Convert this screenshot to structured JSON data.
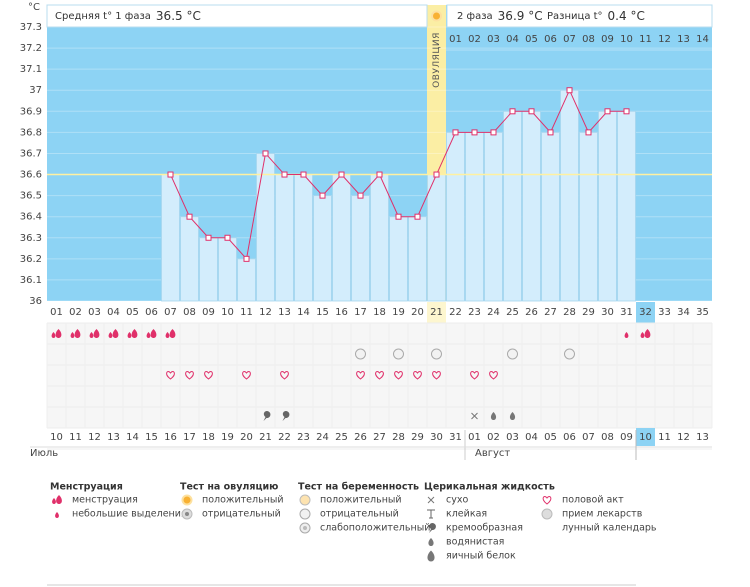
{
  "chart_data": {
    "type": "line",
    "y_label": "°C",
    "ylim": [
      36,
      37.3
    ],
    "yticks": [
      36,
      36.1,
      36.2,
      36.3,
      36.4,
      36.5,
      36.6,
      36.7,
      36.8,
      36.9,
      37,
      37.1,
      37.2,
      37.3
    ],
    "grid": true,
    "phase1_label": "Средняя t° 1 фаза",
    "phase1_avg": "36.5 °C",
    "phase2_label": "2 фаза",
    "phase2_avg": "36.9 °C",
    "difference_label": "Разница t°",
    "difference": "0.4 °C",
    "ovulation_label": "ОВУЛЯЦИЯ",
    "ovulation_day": 21,
    "coverline": 36.6,
    "today": 32,
    "color": "#e0306a",
    "categories": [
      "01",
      "02",
      "03",
      "04",
      "05",
      "06",
      "07",
      "08",
      "09",
      "10",
      "11",
      "12",
      "13",
      "14",
      "15",
      "16",
      "17",
      "18",
      "19",
      "20",
      "21",
      "22",
      "23",
      "24",
      "25",
      "26",
      "27",
      "28",
      "29",
      "30",
      "31",
      "32",
      "33",
      "34",
      "35"
    ],
    "values": [
      null,
      null,
      null,
      null,
      null,
      null,
      36.6,
      36.4,
      36.3,
      36.3,
      36.2,
      36.7,
      36.6,
      36.6,
      36.5,
      36.6,
      36.5,
      36.6,
      36.4,
      36.4,
      36.6,
      36.8,
      36.8,
      36.8,
      36.9,
      36.9,
      36.8,
      37.0,
      36.8,
      36.9,
      36.9,
      null,
      null,
      null,
      null
    ],
    "post_ovulation_days": [
      "01",
      "02",
      "03",
      "04",
      "05",
      "06",
      "07",
      "08",
      "09",
      "10",
      "11",
      "12",
      "13",
      "14"
    ],
    "dates": [
      "10",
      "11",
      "12",
      "13",
      "14",
      "15",
      "16",
      "17",
      "18",
      "19",
      "20",
      "21",
      "22",
      "23",
      "24",
      "25",
      "26",
      "27",
      "28",
      "29",
      "30",
      "31",
      "01",
      "02",
      "03",
      "04",
      "05",
      "06",
      "07",
      "08",
      "09",
      "10",
      "11",
      "12",
      "13"
    ],
    "weekend": [
      false,
      false,
      false,
      true,
      true,
      false,
      false,
      false,
      false,
      false,
      true,
      true,
      false,
      false,
      false,
      false,
      false,
      true,
      true,
      false,
      false,
      false,
      false,
      false,
      true,
      true,
      false,
      false,
      false,
      false,
      false,
      false,
      true,
      false,
      false
    ],
    "months": [
      "Июль",
      "Август"
    ],
    "menstruation_days": [
      1,
      2,
      3,
      4,
      5,
      6,
      7,
      32
    ],
    "spotting_days": [
      31
    ],
    "pregnancy_test_negative_days": [
      17,
      19,
      21,
      25,
      28
    ],
    "intercourse_days": [
      7,
      8,
      9,
      11,
      13,
      17,
      18,
      19,
      20,
      21,
      23,
      24
    ],
    "dry_days": [
      23
    ],
    "creamy_days": [
      12,
      13
    ],
    "watery_days": [
      24,
      25
    ],
    "legend": [
      {
        "title": "Менструация",
        "items": [
          "менструация",
          "небольшие выделения"
        ]
      },
      {
        "title": "Тест на овуляцию",
        "items": [
          "положительный",
          "отрицательный"
        ]
      },
      {
        "title": "Тест на беременность",
        "items": [
          "положительный",
          "отрицательный",
          "слабоположительный"
        ]
      },
      {
        "title": "Церикальная жидкость",
        "items": [
          "сухо",
          "клейкая",
          "кремообразная",
          "водянистая",
          "яичный белок"
        ]
      },
      {
        "items": [
          "половой акт",
          "прием лекарств",
          "лунный календарь"
        ]
      }
    ]
  }
}
